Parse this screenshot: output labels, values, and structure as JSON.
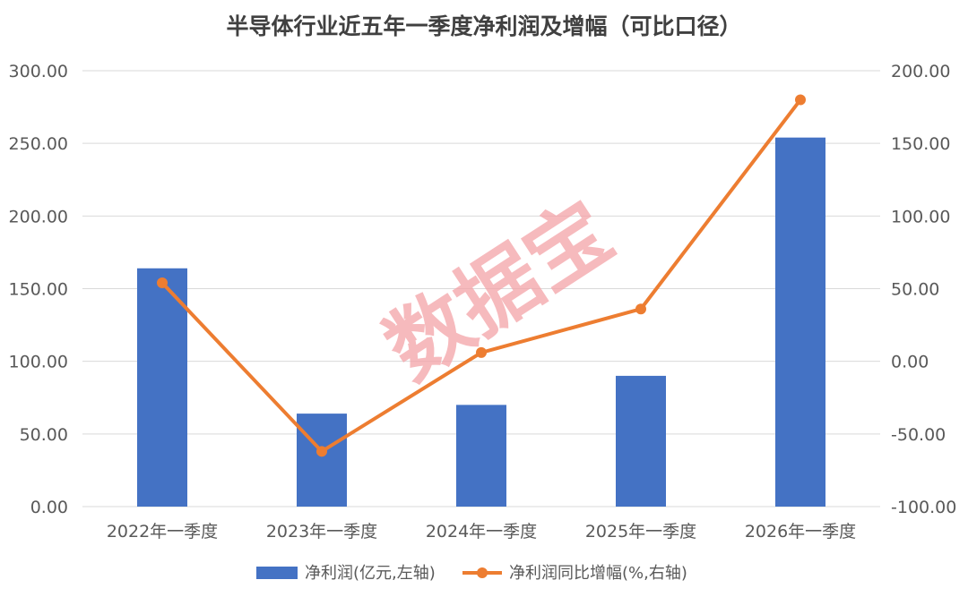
{
  "chart_data": {
    "type": "bar+line",
    "title": "半导体行业近五年一季度净利润及增幅（可比口径）",
    "categories": [
      "2022年一季度",
      "2023年一季度",
      "2024年一季度",
      "2025年一季度",
      "2026年一季度"
    ],
    "series": [
      {
        "name": "净利润(亿元,左轴)",
        "type": "bar",
        "axis": "left",
        "color": "#4472C4",
        "values": [
          164,
          64,
          70,
          90,
          254
        ]
      },
      {
        "name": "净利润同比增幅(%,右轴)",
        "type": "line",
        "axis": "right",
        "color": "#ED7D31",
        "values": [
          54,
          -62,
          6,
          36,
          180
        ]
      }
    ],
    "y_left": {
      "range": [
        0,
        300
      ],
      "ticks": [
        "0.00",
        "50.00",
        "100.00",
        "150.00",
        "200.00",
        "250.00",
        "300.00"
      ]
    },
    "y_right": {
      "range": [
        -100,
        200
      ],
      "ticks": [
        "-100.00",
        "-50.00",
        "0.00",
        "50.00",
        "100.00",
        "150.00",
        "200.00"
      ]
    },
    "grid": true,
    "legend_position": "bottom",
    "watermark": "数据宝",
    "gridline_color": "#d9d9d9"
  }
}
